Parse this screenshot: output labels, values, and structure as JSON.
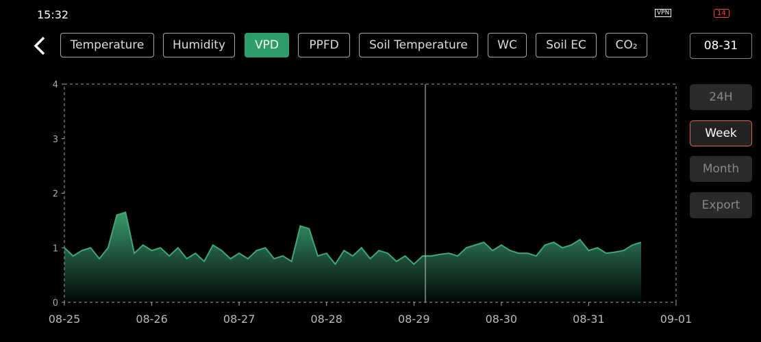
{
  "status_bar": {
    "time": "15:32",
    "vpn": "VPN",
    "battery": "14"
  },
  "tabs": {
    "items": [
      "Temperature",
      "Humidity",
      "VPD",
      "PPFD",
      "Soil Temperature",
      "WC",
      "Soil EC",
      "CO₂"
    ],
    "active": 2
  },
  "date": "08-31",
  "ranges": {
    "items": [
      "24H",
      "Week",
      "Month",
      "Export"
    ],
    "active": 1
  },
  "chart_data": {
    "type": "area",
    "color": "#3fa97a",
    "x": [
      0,
      0.1,
      0.2,
      0.3,
      0.4,
      0.5,
      0.6,
      0.7,
      0.8,
      0.9,
      1.0,
      1.1,
      1.2,
      1.3,
      1.4,
      1.5,
      1.6,
      1.7,
      1.8,
      1.9,
      2.0,
      2.1,
      2.2,
      2.3,
      2.4,
      2.5,
      2.6,
      2.7,
      2.8,
      2.9,
      3.0,
      3.1,
      3.2,
      3.3,
      3.4,
      3.5,
      3.6,
      3.7,
      3.8,
      3.9,
      4.0,
      4.1,
      4.2,
      4.3,
      4.4,
      4.5,
      4.6,
      4.7,
      4.8,
      4.9,
      5.0,
      5.1,
      5.2,
      5.3,
      5.4,
      5.5,
      5.6,
      5.7,
      5.8,
      5.9,
      6.0,
      6.1,
      6.2,
      6.3,
      6.4,
      6.5,
      6.6
    ],
    "values": [
      1.0,
      0.85,
      0.95,
      1.0,
      0.8,
      1.0,
      1.6,
      1.65,
      0.9,
      1.05,
      0.95,
      1.0,
      0.85,
      1.0,
      0.8,
      0.9,
      0.75,
      1.05,
      0.95,
      0.8,
      0.9,
      0.8,
      0.95,
      1.0,
      0.8,
      0.85,
      0.75,
      1.4,
      1.35,
      0.85,
      0.9,
      0.7,
      0.95,
      0.85,
      1.0,
      0.8,
      0.95,
      0.9,
      0.75,
      0.85,
      0.7,
      0.85,
      0.85,
      0.88,
      0.9,
      0.85,
      1.0,
      1.05,
      1.1,
      0.95,
      1.05,
      0.95,
      0.9,
      0.9,
      0.85,
      1.05,
      1.1,
      1.0,
      1.05,
      1.15,
      0.95,
      1.0,
      0.9,
      0.92,
      0.95,
      1.05,
      1.1
    ],
    "xlim": [
      0,
      7
    ],
    "xticks": [
      {
        "value": 0,
        "label": "08-25"
      },
      {
        "value": 1,
        "label": "08-26"
      },
      {
        "value": 2,
        "label": "08-27"
      },
      {
        "value": 3,
        "label": "08-28"
      },
      {
        "value": 4,
        "label": "08-29"
      },
      {
        "value": 5,
        "label": "08-30"
      },
      {
        "value": 6,
        "label": "08-31"
      },
      {
        "value": 7,
        "label": "09-01"
      }
    ],
    "ylim": [
      0,
      4
    ],
    "yticks": [
      0,
      1,
      2,
      3,
      4
    ]
  }
}
